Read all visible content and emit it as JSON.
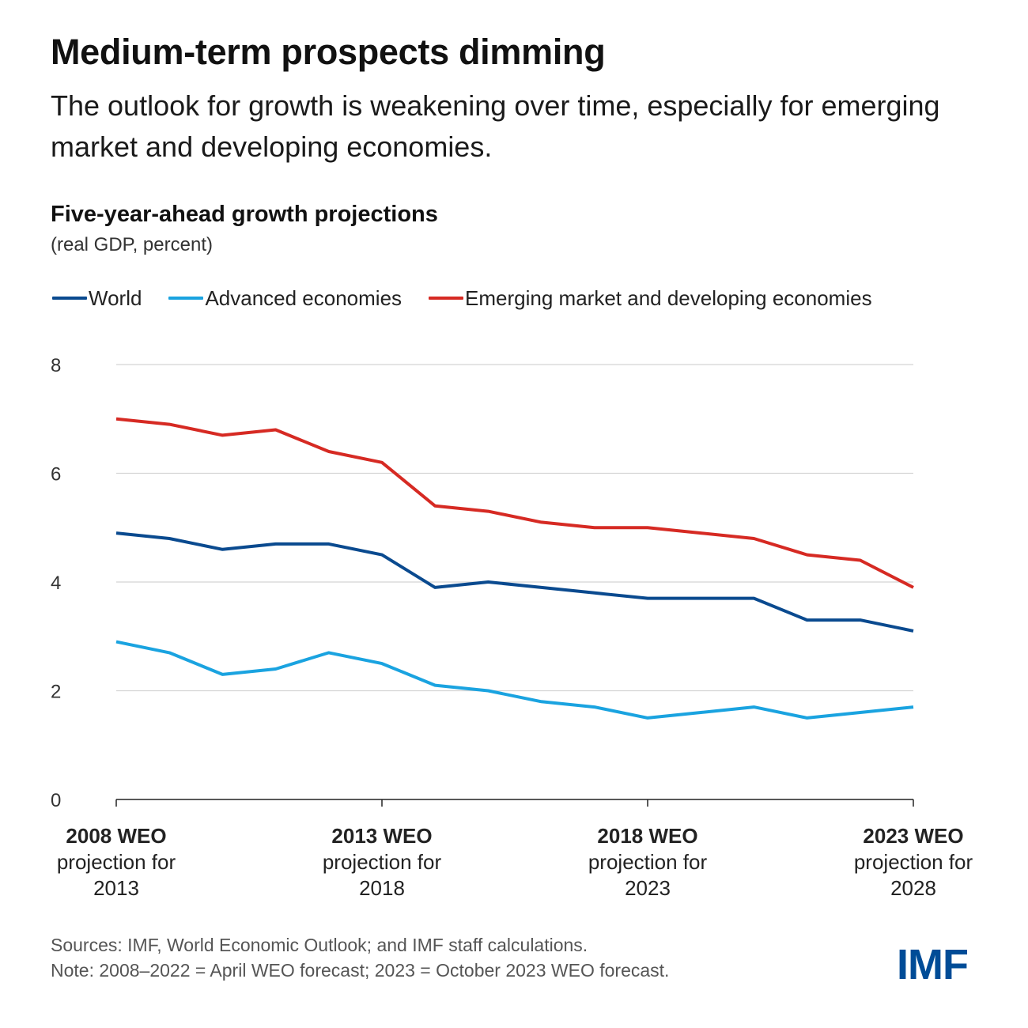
{
  "header": {
    "title": "Medium-term prospects dimming",
    "subtitle": "The outlook for growth is weakening over time, especially for emerging market and developing economies."
  },
  "chart_data": {
    "type": "line",
    "title": "Five-year-ahead growth projections",
    "subtitle": "(real GDP, percent)",
    "ylim": [
      0,
      8
    ],
    "yticks": [
      0,
      2,
      4,
      6,
      8
    ],
    "grid": true,
    "legend_position": "top-left",
    "x": [
      2008,
      2009,
      2010,
      2011,
      2012,
      2013,
      2014,
      2015,
      2016,
      2017,
      2018,
      2019,
      2020,
      2021,
      2022,
      2023
    ],
    "x_tick_labels": [
      {
        "x": 2008,
        "lines": [
          "2008 WEO",
          "projection for",
          "2013"
        ]
      },
      {
        "x": 2013,
        "lines": [
          "2013 WEO",
          "projection for",
          "2018"
        ]
      },
      {
        "x": 2018,
        "lines": [
          "2018 WEO",
          "projection for",
          "2023"
        ]
      },
      {
        "x": 2023,
        "lines": [
          "2023 WEO",
          "projection for",
          "2028"
        ]
      }
    ],
    "series": [
      {
        "name": "World",
        "color": "#0a4a8f",
        "values": [
          4.9,
          4.8,
          4.6,
          4.7,
          4.7,
          4.5,
          3.9,
          4.0,
          3.9,
          3.8,
          3.7,
          3.7,
          3.7,
          3.3,
          3.3,
          3.1
        ]
      },
      {
        "name": "Advanced economies",
        "color": "#1aa3e0",
        "values": [
          2.9,
          2.7,
          2.3,
          2.4,
          2.7,
          2.5,
          2.1,
          2.0,
          1.8,
          1.7,
          1.5,
          1.6,
          1.7,
          1.5,
          1.6,
          1.7
        ]
      },
      {
        "name": "Emerging market and developing economies",
        "color": "#d62a23",
        "values": [
          7.0,
          6.9,
          6.7,
          6.8,
          6.4,
          6.2,
          5.4,
          5.3,
          5.1,
          5.0,
          5.0,
          4.9,
          4.8,
          4.5,
          4.4,
          3.9
        ]
      }
    ]
  },
  "footer": {
    "source": "Sources: IMF, World Economic Outlook; and IMF staff calculations.",
    "note": "Note: 2008–2022 = April WEO forecast; 2023 = October 2023 WEO forecast.",
    "logo": "IMF"
  }
}
